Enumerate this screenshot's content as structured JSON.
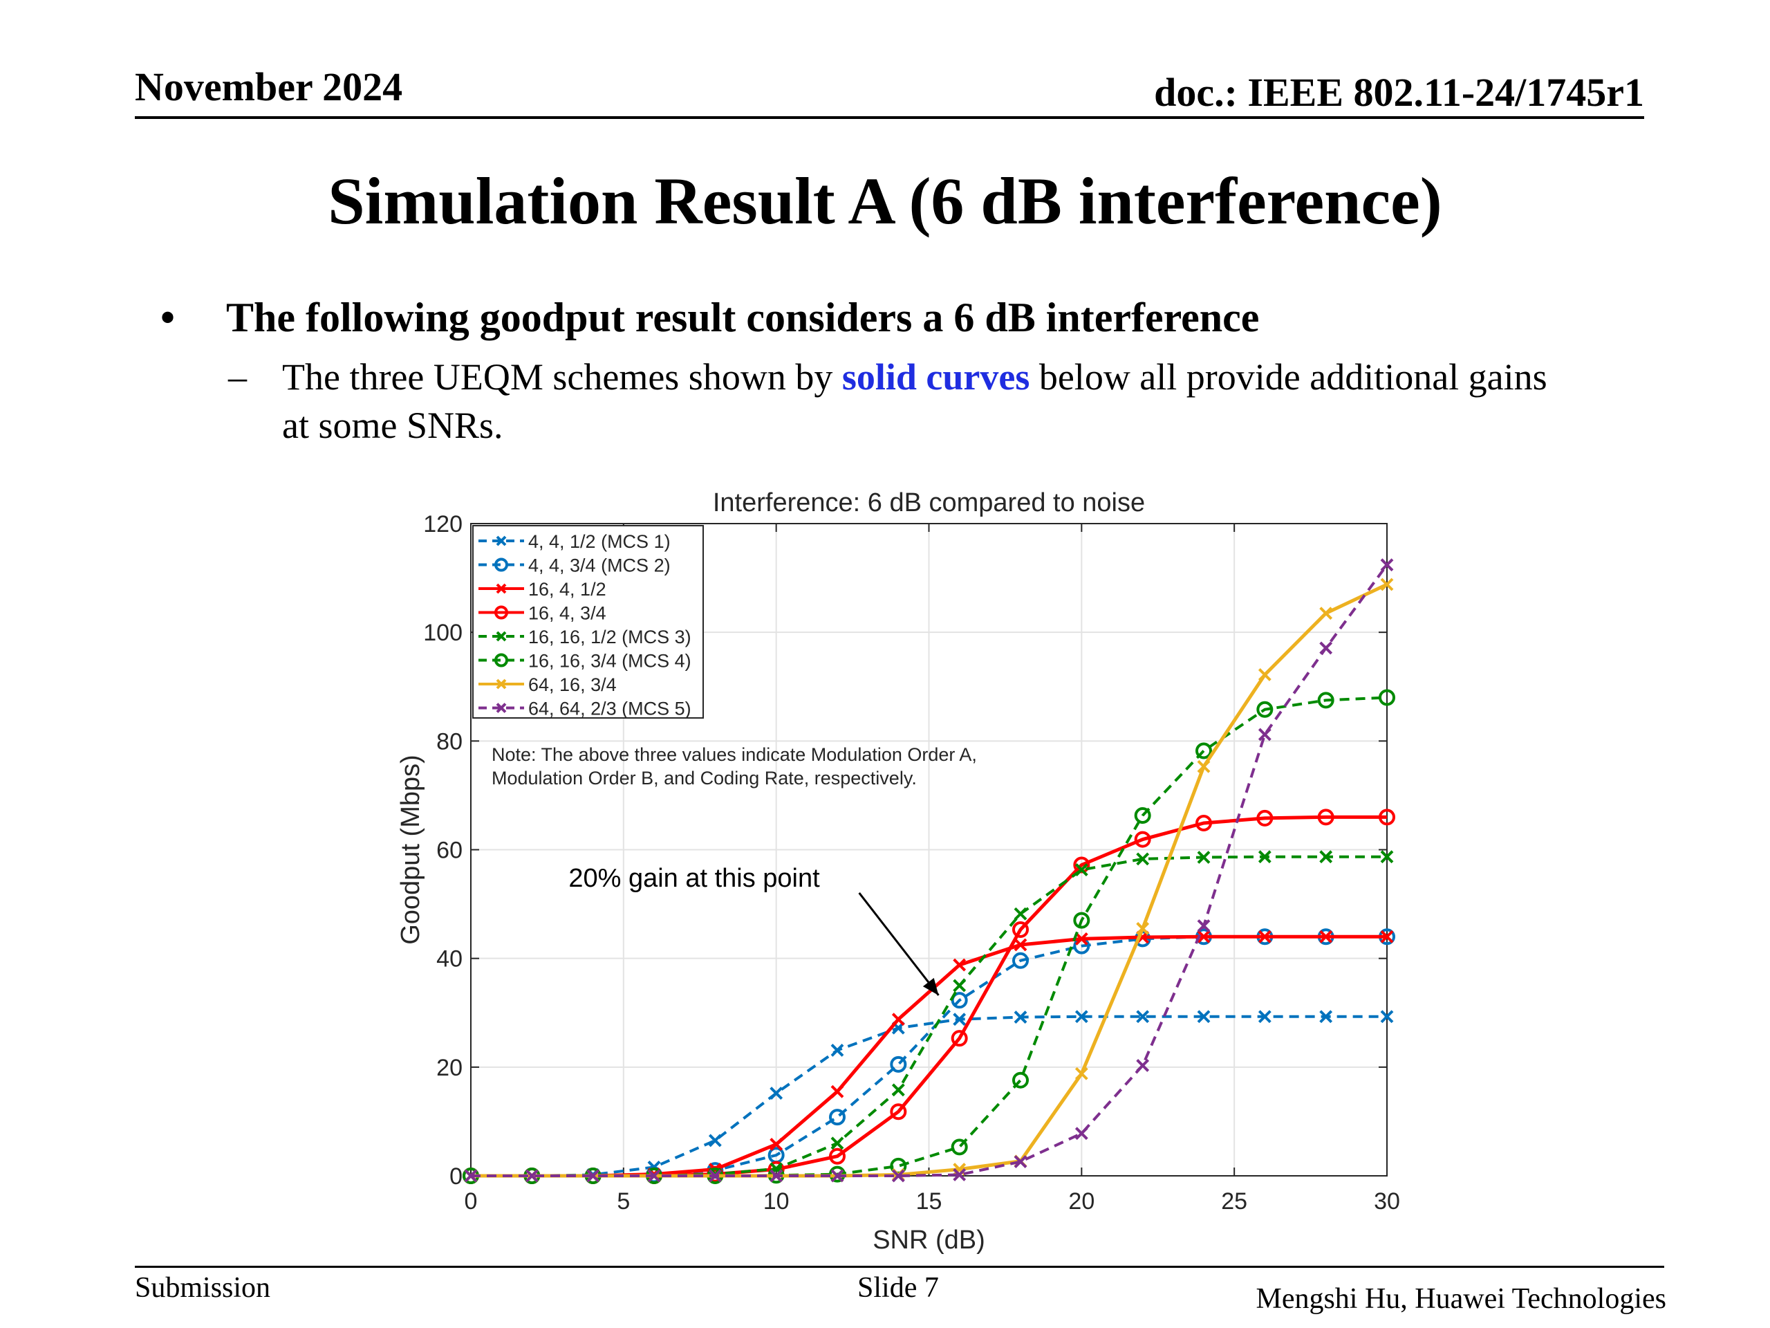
{
  "header": {
    "date": "November 2024",
    "doc": "doc.: IEEE 802.11-24/1745r1"
  },
  "title": "Simulation Result A (6 dB interference)",
  "bullets": {
    "main": "The following goodput result considers a 6 dB interference",
    "sub_before": "The three UEQM schemes shown by ",
    "sub_highlight": "solid curves",
    "sub_after_line1": " below all provide additional gains",
    "sub_line2": "at some SNRs."
  },
  "footer": {
    "left": "Submission",
    "center": "Slide 7",
    "right": "Mengshi Hu, Huawei Technologies"
  },
  "chart_data": {
    "type": "line",
    "title": "Interference: 6 dB compared to noise",
    "xlabel": "SNR (dB)",
    "ylabel": "Goodput (Mbps)",
    "xlim": [
      0,
      30
    ],
    "ylim": [
      0,
      120
    ],
    "xticks": [
      0,
      5,
      10,
      15,
      20,
      25,
      30
    ],
    "yticks": [
      0,
      20,
      40,
      60,
      80,
      100,
      120
    ],
    "grid": true,
    "legend_position": "top-left",
    "x": [
      0,
      2,
      4,
      6,
      8,
      10,
      12,
      14,
      16,
      18,
      20,
      22,
      24,
      26,
      28,
      30
    ],
    "series": [
      {
        "name": "4, 4, 1/2 (MCS 1)",
        "color": "#0072bd",
        "dash": true,
        "marker": "x",
        "values": [
          0,
          0,
          0.2,
          1.6,
          6.5,
          15.2,
          23.1,
          27.2,
          28.8,
          29.2,
          29.3,
          29.3,
          29.3,
          29.3,
          29.3,
          29.3
        ]
      },
      {
        "name": "4, 4, 3/4 (MCS 2)",
        "color": "#0072bd",
        "dash": true,
        "marker": "o",
        "values": [
          0,
          0,
          0,
          0.2,
          1.0,
          3.8,
          10.8,
          20.5,
          32.3,
          39.6,
          42.3,
          43.6,
          44.0,
          44.0,
          44.0,
          44.0
        ]
      },
      {
        "name": "16, 4, 1/2",
        "color": "#ff0000",
        "dash": false,
        "marker": "x",
        "values": [
          0,
          0,
          0,
          0.3,
          1.2,
          5.8,
          15.5,
          28.8,
          38.8,
          42.5,
          43.6,
          43.9,
          44.0,
          44.0,
          44.0,
          44.0
        ]
      },
      {
        "name": "16, 4, 3/4",
        "color": "#ff0000",
        "dash": false,
        "marker": "o",
        "values": [
          0,
          0,
          0,
          0,
          0.3,
          1.2,
          3.6,
          11.8,
          25.3,
          45.3,
          57.2,
          61.9,
          64.9,
          65.8,
          66.0,
          66.0
        ]
      },
      {
        "name": "16, 16, 1/2 (MCS 3)",
        "color": "#008a00",
        "dash": true,
        "marker": "x",
        "values": [
          0,
          0,
          0,
          0,
          0.3,
          1.3,
          6.0,
          15.8,
          35.0,
          48.2,
          56.3,
          58.3,
          58.6,
          58.7,
          58.7,
          58.7
        ]
      },
      {
        "name": "16, 16, 3/4 (MCS 4)",
        "color": "#008a00",
        "dash": true,
        "marker": "o",
        "values": [
          0,
          0,
          0,
          0,
          0,
          0.1,
          0.3,
          1.8,
          5.3,
          17.6,
          47.0,
          66.3,
          78.2,
          85.8,
          87.5,
          88.0
        ]
      },
      {
        "name": "64, 16, 3/4",
        "color": "#edb120",
        "dash": false,
        "marker": "x",
        "values": [
          0,
          0,
          0,
          0,
          0,
          0,
          0,
          0.2,
          1.2,
          2.7,
          18.8,
          45.5,
          75.3,
          92.2,
          103.5,
          108.8
        ]
      },
      {
        "name": "64, 64, 2/3 (MCS 5)",
        "color": "#7e2f8e",
        "dash": true,
        "marker": "x",
        "values": [
          0,
          0,
          0,
          0,
          0,
          0,
          0,
          0,
          0.2,
          2.6,
          7.8,
          20.3,
          46.0,
          81.2,
          97.1,
          112.4
        ]
      }
    ],
    "annotations": [
      {
        "text": "Note: The above three values indicate Modulation Order A,",
        "line": 1
      },
      {
        "text": "Modulation Order B, and Coding Rate, respectively.",
        "line": 2
      },
      {
        "text": "20% gain at this point",
        "arrow_to": [
          15,
          35.0
        ],
        "arrow_from": [
          10,
          49.0
        ],
        "label_at": [
          3.2,
          53.2
        ]
      }
    ]
  }
}
